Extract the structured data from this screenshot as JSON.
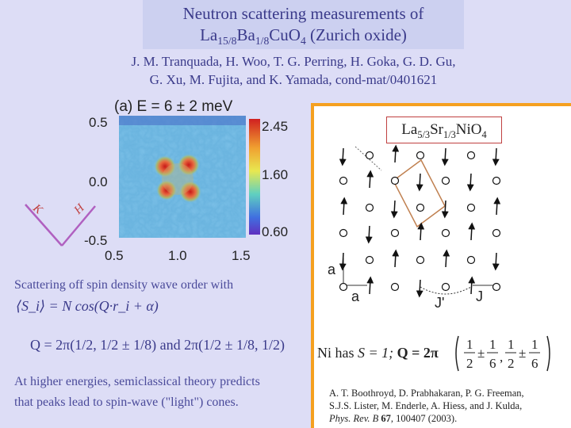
{
  "header": {
    "title_line1": "Neutron scattering measurements of",
    "title_line2_formula": [
      "La",
      "15/8",
      "Ba",
      "1/8",
      "CuO",
      "4"
    ],
    "title_line2_suffix": " (Zurich oxide)",
    "authors_line1": "J. M. Tranquada, H. Woo, T. G. Perring, H. Goka, G. D. Gu,",
    "authors_line2": "G. Xu, M. Fujita, and K. Yamada, cond-mat/0401621"
  },
  "left_plot": {
    "title": "(a) E = 6 ± 2 meV",
    "y_ticks": [
      "0.5",
      "0.0",
      "-0.5"
    ],
    "x_ticks": [
      "0.5",
      "1.0",
      "1.5"
    ],
    "colorbar_ticks": [
      "2.45",
      "1.60",
      "0.60"
    ],
    "axis_marks": [
      "K",
      "H"
    ]
  },
  "right_panel": {
    "formula": [
      "La",
      "5/3",
      "Sr",
      "1/3",
      "NiO",
      "4"
    ],
    "label_a_vertical": "a",
    "label_a_horizontal": "a",
    "label_jprime": "J'",
    "label_j": "J",
    "ni_has": "Ni has",
    "spin_eq": "S = 1;",
    "q_eq": "Q = 2π",
    "q_terms": [
      "1",
      "2",
      "±",
      "1",
      "6",
      ",",
      "1",
      "2",
      "±",
      "1",
      "6"
    ]
  },
  "body": {
    "line1": "Scattering off spin density wave order with",
    "formula_sdw": "⟨S_i⟩ = N cos(Q·r_i + α)",
    "formula_q": "Q = 2π(1/2, 1/2 ± 1/8) and 2π(1/2 ± 1/8, 1/2)",
    "line2": "At higher energies, semiclassical theory predicts",
    "line3": "that peaks lead to spin-wave (\"light\") cones."
  },
  "reference": {
    "line1": "A. T. Boothroyd, D. Prabhakaran, P. G. Freeman,",
    "line2": "S.J.S. Lister, M. Enderle, A. Hiess, and J. Kulda,",
    "journal": "Phys. Rev. B",
    "volume": "67",
    "rest": ", 100407 (2003)."
  },
  "colors": {
    "background": "#ddddf6",
    "title_band": "#ccd0f0",
    "accent_orange": "#f5a020",
    "text_blue": "#3a3a8a"
  }
}
